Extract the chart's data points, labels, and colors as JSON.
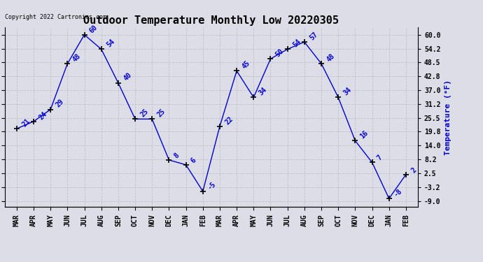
{
  "title": "Outdoor Temperature Monthly Low 20220305",
  "ylabel": "Temperature (°F)",
  "copyright_text": "Copyright 2022 Cartronics.com",
  "months": [
    "MAR",
    "APR",
    "MAY",
    "JUN",
    "JUL",
    "AUG",
    "SEP",
    "OCT",
    "NOV",
    "DEC",
    "JAN",
    "FEB",
    "MAR",
    "APR",
    "MAY",
    "JUN",
    "JUL",
    "AUG",
    "SEP",
    "OCT",
    "NOV",
    "DEC",
    "JAN",
    "FEB"
  ],
  "values": [
    21,
    24,
    29,
    48,
    60,
    54,
    40,
    25,
    25,
    8,
    6,
    -5,
    22,
    45,
    34,
    50,
    54,
    57,
    48,
    34,
    16,
    7,
    -8,
    2
  ],
  "yticks": [
    -9.0,
    -3.2,
    2.5,
    8.2,
    14.0,
    19.8,
    25.5,
    31.2,
    37.0,
    42.8,
    48.5,
    54.2,
    60.0
  ],
  "ylim_min": -11.5,
  "ylim_max": 63.0,
  "line_color": "#0000cc",
  "marker_color": "#000000",
  "label_color": "#0000cc",
  "grid_color": "#c0c0c8",
  "bg_color": "#dddde8",
  "title_fontsize": 11,
  "data_label_fontsize": 7,
  "ylabel_color": "#0000cc",
  "ylabel_fontsize": 8,
  "copyright_color": "#000000",
  "copyright_fontsize": 6,
  "xtick_fontsize": 7,
  "ytick_fontsize": 7
}
